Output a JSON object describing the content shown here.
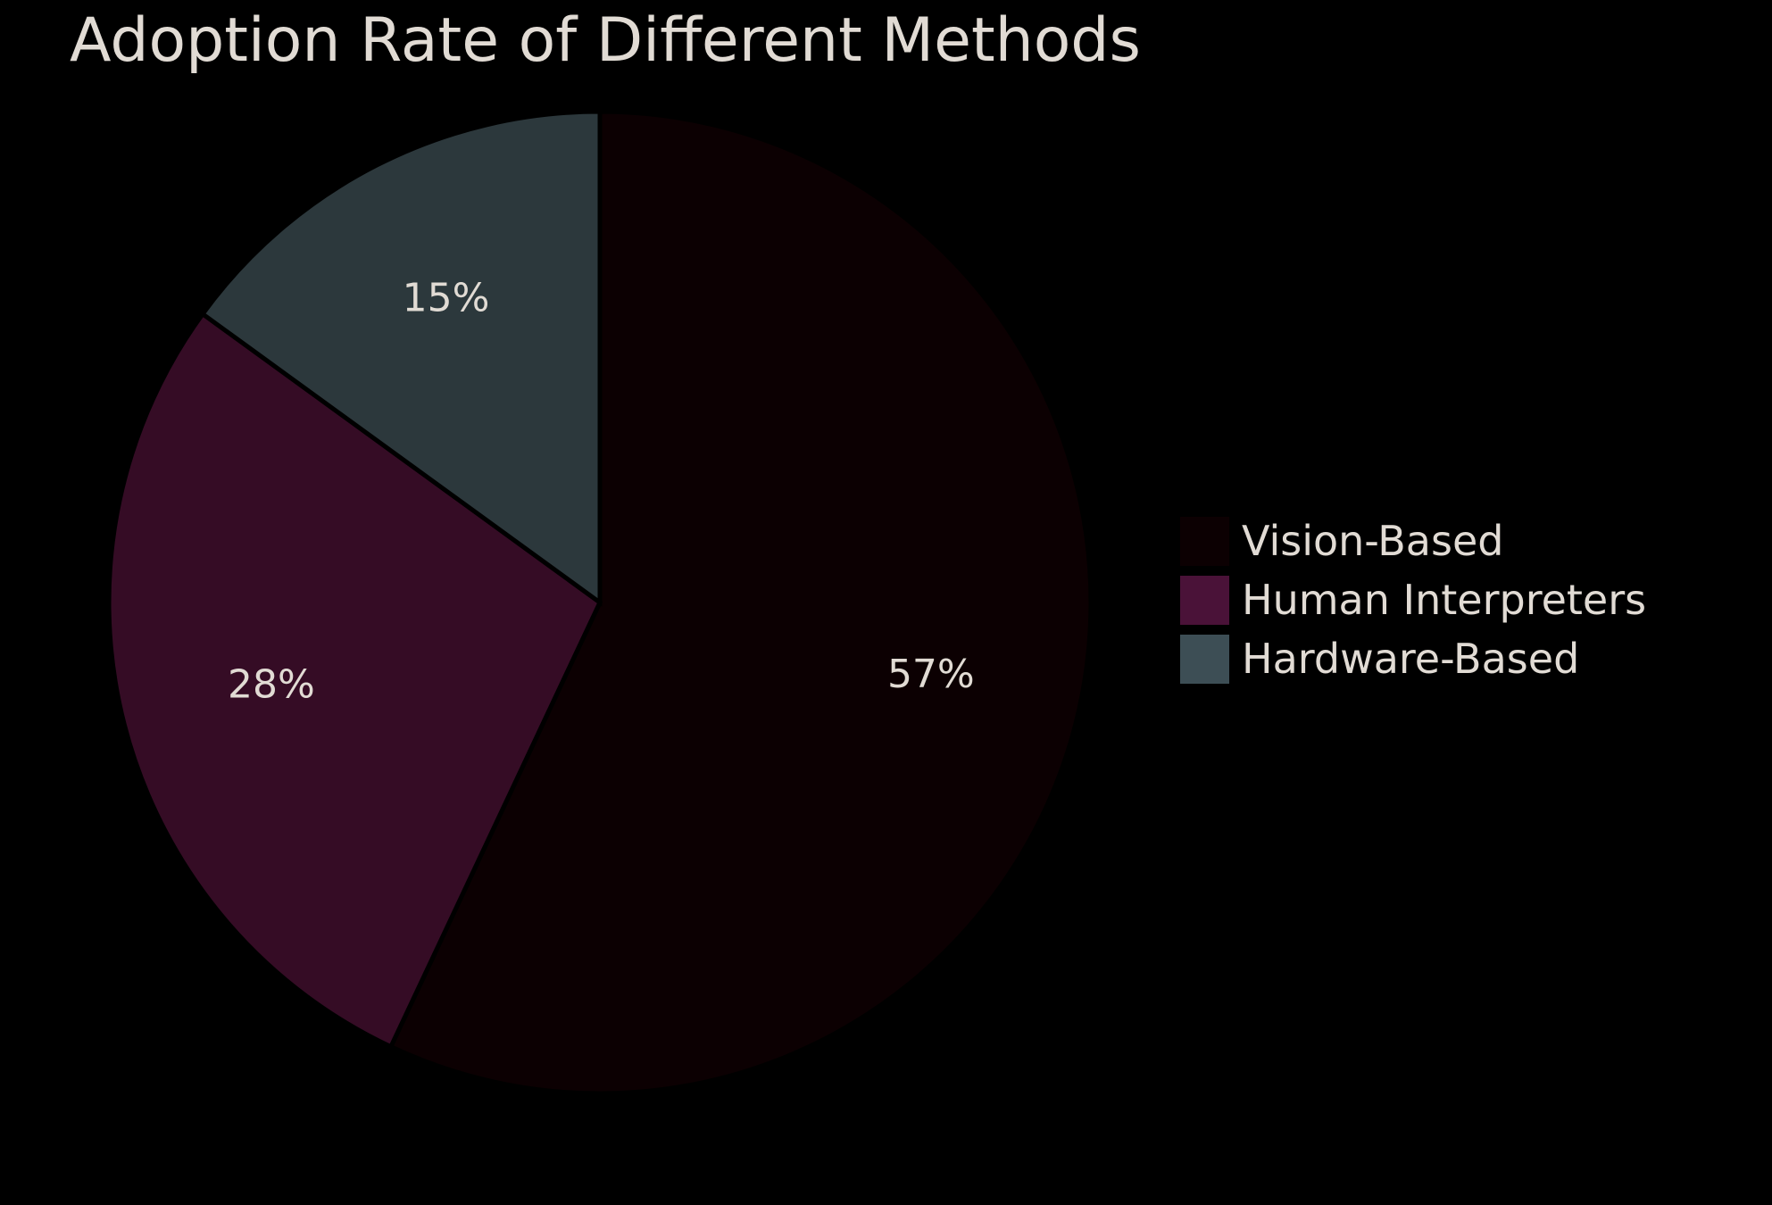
{
  "chart_data": {
    "type": "pie",
    "title": "Adoption Rate of Different Methods",
    "categories": [
      "Vision-Based",
      "Human Interpreters",
      "Hardware-Based"
    ],
    "values": [
      57,
      28,
      15
    ],
    "value_labels": [
      "57%",
      "28%",
      "15%"
    ],
    "colors": [
      "#0c0002",
      "#350c25",
      "#2c383c"
    ],
    "legend_colors": [
      "#0c0002",
      "#4a1238",
      "#3d4e55"
    ],
    "legend_position": "right"
  }
}
